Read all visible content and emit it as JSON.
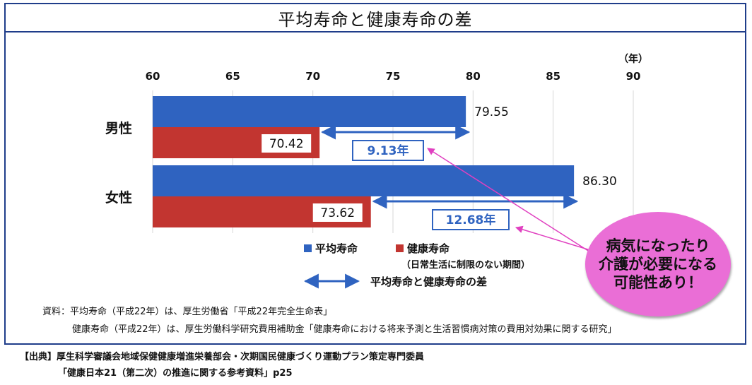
{
  "chart_data": {
    "type": "bar",
    "orientation": "horizontal",
    "title": "平均寿命と健康寿命の差",
    "unit_label": "（年）",
    "xlim": [
      60,
      90
    ],
    "ticks": [
      60,
      65,
      70,
      75,
      80,
      85,
      90
    ],
    "categories": [
      "男性",
      "女性"
    ],
    "series": [
      {
        "name": "平均寿命",
        "color": "#2f63c0",
        "values": [
          79.55,
          86.3
        ],
        "labels": [
          "79.55",
          "86.30"
        ]
      },
      {
        "name": "健康寿命",
        "color": "#c23530",
        "values": [
          70.42,
          73.62
        ],
        "labels": [
          "70.42",
          "73.62"
        ]
      }
    ],
    "differences": {
      "values": [
        9.13,
        12.68
      ],
      "labels": [
        "9.13年",
        "12.68年"
      ]
    },
    "legend": {
      "avg": "平均寿命",
      "healthy": "健康寿命",
      "healthy_note": "（日常生活に制限のない期間）",
      "diff": "平均寿命と健康寿命の差"
    },
    "grid": "vertical"
  },
  "callout": {
    "lines": [
      "病気になったり",
      "介護が必要になる",
      "可能性あり！"
    ],
    "color": "#ea6ed6"
  },
  "sources": {
    "line1": "資料：平均寿命（平成22年）は、厚生労働省「平成22年完全生命表」",
    "line2": "健康寿命（平成22年）は、厚生労働科学研究費用補助金「健康寿命における将来予測と生活習慣病対策の費用対効果に関する研究」"
  },
  "citation": {
    "line1": "【出典】厚生科学審議会地域保健健康増進栄養部会・次期国民健康づくり運動プラン策定専門委員",
    "line2": "「健康日本21（第二次）の推進に関する参考資料」p25"
  }
}
